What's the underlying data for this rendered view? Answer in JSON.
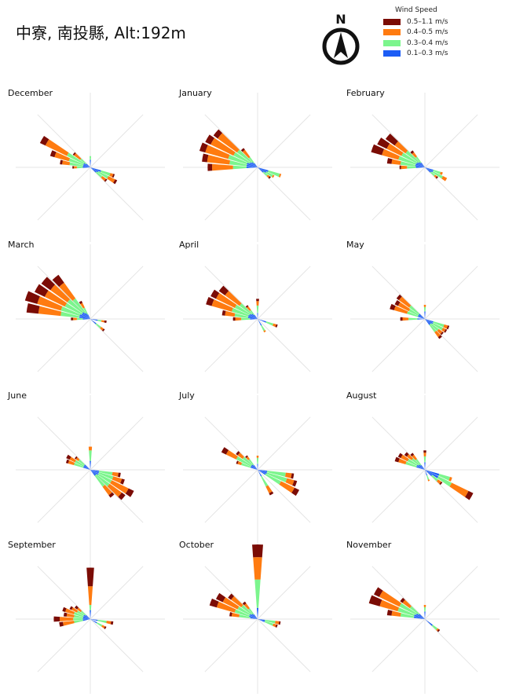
{
  "title": "中寮, 南投縣, Alt:192m",
  "compass_letter": "N",
  "legend": {
    "title": "Wind Speed",
    "items": [
      {
        "label": "0.5–1.1 m/s",
        "color": "#7b0c05"
      },
      {
        "label": "0.4–0.5 m/s",
        "color": "#ff7b10"
      },
      {
        "label": "0.3–0.4 m/s",
        "color": "#7cf58d"
      },
      {
        "label": "0.1–0.3 m/s",
        "color": "#1c5df5"
      }
    ]
  },
  "chart_data": {
    "type": "windrose",
    "direction_step_deg": 10,
    "bins": [
      "0.1–0.3 m/s",
      "0.3–0.4 m/s",
      "0.4–0.5 m/s",
      "0.5–1.1 m/s"
    ],
    "colors": [
      "#1c5df5",
      "#7cf58d",
      "#ff7b10",
      "#7b0c05"
    ],
    "rmax": 10,
    "months": [
      {
        "name": "December",
        "petals": [
          {
            "dir": 0,
            "v": [
              1.0,
              0.5,
              0,
              0
            ]
          },
          {
            "dir": 110,
            "v": [
              1.5,
              1.3,
              0.4,
              0.2
            ]
          },
          {
            "dir": 120,
            "v": [
              1.2,
              1.5,
              1.0,
              0.3
            ]
          },
          {
            "dir": 130,
            "v": [
              1.0,
              1.0,
              0.6,
              0.2
            ]
          },
          {
            "dir": 270,
            "v": [
              1.0,
              0.8,
              0.4,
              0.2
            ]
          },
          {
            "dir": 280,
            "v": [
              1.0,
              1.8,
              1.0,
              0.3
            ]
          },
          {
            "dir": 290,
            "v": [
              1.0,
              2.0,
              2.0,
              0.6
            ]
          },
          {
            "dir": 300,
            "v": [
              1.0,
              2.5,
              3.2,
              0.8
            ]
          },
          {
            "dir": 310,
            "v": [
              0.7,
              1.0,
              1.0,
              0.2
            ]
          }
        ]
      },
      {
        "name": "January",
        "petals": [
          {
            "dir": 110,
            "v": [
              1.5,
              1.6,
              0.2,
              0
            ]
          },
          {
            "dir": 120,
            "v": [
              1.3,
              1.0,
              0.2,
              0
            ]
          },
          {
            "dir": 130,
            "v": [
              1.0,
              0.7,
              0.3,
              0.2
            ]
          },
          {
            "dir": 270,
            "v": [
              1.5,
              1.8,
              2.8,
              0.6
            ]
          },
          {
            "dir": 280,
            "v": [
              1.5,
              2.3,
              3.0,
              0.7
            ]
          },
          {
            "dir": 290,
            "v": [
              1.5,
              2.6,
              3.2,
              0.8
            ]
          },
          {
            "dir": 300,
            "v": [
              1.2,
              2.4,
              3.4,
              0.8
            ]
          },
          {
            "dir": 310,
            "v": [
              1.0,
              2.4,
              3.2,
              0.7
            ]
          },
          {
            "dir": 320,
            "v": [
              0.7,
              1.0,
              1.2,
              0.3
            ]
          }
        ]
      },
      {
        "name": "February",
        "petals": [
          {
            "dir": 110,
            "v": [
              1.2,
              1.0,
              0.3,
              0
            ]
          },
          {
            "dir": 120,
            "v": [
              1.2,
              1.5,
              0.6,
              0
            ]
          },
          {
            "dir": 130,
            "v": [
              1.0,
              0.7,
              0.3,
              0.2
            ]
          },
          {
            "dir": 270,
            "v": [
              1.2,
              1.2,
              0.8,
              0.2
            ]
          },
          {
            "dir": 280,
            "v": [
              1.3,
              2.0,
              1.2,
              0.6
            ]
          },
          {
            "dir": 290,
            "v": [
              1.3,
              2.4,
              2.3,
              1.5
            ]
          },
          {
            "dir": 300,
            "v": [
              1.2,
              2.3,
              2.2,
              1.4
            ]
          },
          {
            "dir": 310,
            "v": [
              1.0,
              2.2,
              1.8,
              1.5
            ]
          },
          {
            "dir": 320,
            "v": [
              0.8,
              1.0,
              0.7,
              0.3
            ]
          }
        ]
      },
      {
        "name": "March",
        "petals": [
          {
            "dir": 100,
            "v": [
              1.0,
              0.5,
              0.4,
              0.3
            ]
          },
          {
            "dir": 130,
            "v": [
              1.0,
              0.8,
              0.4,
              0.2
            ]
          },
          {
            "dir": 270,
            "v": [
              1.0,
              0.8,
              0.5,
              0.3
            ]
          },
          {
            "dir": 280,
            "v": [
              1.5,
              2.5,
              3.0,
              1.6
            ]
          },
          {
            "dir": 290,
            "v": [
              1.5,
              2.6,
              3.3,
              1.7
            ]
          },
          {
            "dir": 300,
            "v": [
              1.3,
              2.5,
              3.0,
              1.5
            ]
          },
          {
            "dir": 310,
            "v": [
              1.3,
              2.5,
              2.8,
              1.5
            ]
          },
          {
            "dir": 320,
            "v": [
              1.0,
              2.4,
              2.6,
              1.3
            ]
          },
          {
            "dir": 330,
            "v": [
              0.7,
              1.0,
              0.7,
              0.3
            ]
          }
        ]
      },
      {
        "name": "April",
        "petals": [
          {
            "dir": 0,
            "v": [
              0.8,
              1.0,
              0.6,
              0.3
            ]
          },
          {
            "dir": 110,
            "v": [
              1.2,
              1.0,
              0.4,
              0.2
            ]
          },
          {
            "dir": 150,
            "v": [
              1.0,
              0.8,
              0.2,
              0
            ]
          },
          {
            "dir": 270,
            "v": [
              1.0,
              1.2,
              0.8,
              0.3
            ]
          },
          {
            "dir": 280,
            "v": [
              1.3,
              1.8,
              1.3,
              0.4
            ]
          },
          {
            "dir": 290,
            "v": [
              1.3,
              2.3,
              2.8,
              0.8
            ]
          },
          {
            "dir": 300,
            "v": [
              1.2,
              2.2,
              2.8,
              0.8
            ]
          },
          {
            "dir": 310,
            "v": [
              1.0,
              2.0,
              2.4,
              1.0
            ]
          },
          {
            "dir": 320,
            "v": [
              0.7,
              0.8,
              0.6,
              0.2
            ]
          }
        ]
      },
      {
        "name": "May",
        "petals": [
          {
            "dir": 0,
            "v": [
              1.0,
              0.6,
              0.3,
              0
            ]
          },
          {
            "dir": 110,
            "v": [
              1.2,
              1.5,
              0.5,
              0.2
            ]
          },
          {
            "dir": 120,
            "v": [
              1.2,
              1.5,
              0.4,
              0.2
            ]
          },
          {
            "dir": 130,
            "v": [
              1.0,
              1.3,
              0.6,
              0.2
            ]
          },
          {
            "dir": 140,
            "v": [
              1.0,
              1.2,
              0.8,
              0.3
            ]
          },
          {
            "dir": 270,
            "v": [
              1.0,
              1.2,
              0.8,
              0.3
            ]
          },
          {
            "dir": 290,
            "v": [
              1.0,
              1.5,
              1.8,
              0.6
            ]
          },
          {
            "dir": 300,
            "v": [
              1.0,
              1.4,
              1.6,
              0.5
            ]
          },
          {
            "dir": 310,
            "v": [
              1.0,
              1.6,
              1.7,
              0.4
            ]
          }
        ]
      },
      {
        "name": "June",
        "petals": [
          {
            "dir": 0,
            "v": [
              1.2,
              1.4,
              0.5,
              0
            ]
          },
          {
            "dir": 100,
            "v": [
              1.2,
              1.8,
              0.8,
              0.3
            ]
          },
          {
            "dir": 110,
            "v": [
              1.2,
              2.0,
              1.2,
              0.4
            ]
          },
          {
            "dir": 120,
            "v": [
              1.2,
              2.0,
              2.5,
              0.8
            ]
          },
          {
            "dir": 130,
            "v": [
              1.0,
              2.2,
              2.0,
              0.6
            ]
          },
          {
            "dir": 140,
            "v": [
              1.0,
              1.8,
              1.4,
              0.4
            ]
          },
          {
            "dir": 290,
            "v": [
              1.0,
              1.3,
              0.8,
              0.3
            ]
          },
          {
            "dir": 300,
            "v": [
              1.0,
              1.3,
              0.8,
              0.5
            ]
          },
          {
            "dir": 310,
            "v": [
              1.0,
              1.0,
              0.4,
              0.2
            ]
          }
        ]
      },
      {
        "name": "July",
        "petals": [
          {
            "dir": 0,
            "v": [
              0.8,
              0.8,
              0.3,
              0
            ]
          },
          {
            "dir": 100,
            "v": [
              1.3,
              2.5,
              0.8,
              0.3
            ]
          },
          {
            "dir": 110,
            "v": [
              1.3,
              2.8,
              1.0,
              0.4
            ]
          },
          {
            "dir": 120,
            "v": [
              1.2,
              2.3,
              2.0,
              0.7
            ]
          },
          {
            "dir": 150,
            "v": [
              1.0,
              1.5,
              1.0,
              0.3
            ]
          },
          {
            "dir": 290,
            "v": [
              1.0,
              1.3,
              0.5,
              0.2
            ]
          },
          {
            "dir": 300,
            "v": [
              1.0,
              2.2,
              1.5,
              0.7
            ]
          },
          {
            "dir": 310,
            "v": [
              1.0,
              1.5,
              0.8,
              0.3
            ]
          },
          {
            "dir": 320,
            "v": [
              0.8,
              1.0,
              0.4,
              0.2
            ]
          }
        ]
      },
      {
        "name": "August",
        "petals": [
          {
            "dir": 0,
            "v": [
              1.0,
              0.8,
              0.5,
              0.3
            ]
          },
          {
            "dir": 110,
            "v": [
              2.0,
              1.5,
              0.3,
              0
            ]
          },
          {
            "dir": 120,
            "v": [
              2.0,
              2.0,
              2.5,
              0.7
            ]
          },
          {
            "dir": 130,
            "v": [
              1.2,
              1.0,
              0.5,
              0.2
            ]
          },
          {
            "dir": 160,
            "v": [
              0.8,
              0.6,
              0.2,
              0
            ]
          },
          {
            "dir": 290,
            "v": [
              1.2,
              1.5,
              1.0,
              0.5
            ]
          },
          {
            "dir": 300,
            "v": [
              1.2,
              1.4,
              1.0,
              0.4
            ]
          },
          {
            "dir": 310,
            "v": [
              1.0,
              1.2,
              0.8,
              0.4
            ]
          },
          {
            "dir": 320,
            "v": [
              0.8,
              1.0,
              0.7,
              0.3
            ]
          }
        ]
      },
      {
        "name": "September",
        "petals": [
          {
            "dir": 0,
            "v": [
              1.2,
              0.7,
              2.5,
              2.5
            ]
          },
          {
            "dir": 100,
            "v": [
              1.0,
              1.2,
              0.6,
              0.3
            ]
          },
          {
            "dir": 120,
            "v": [
              1.0,
              0.8,
              0.4,
              0.2
            ]
          },
          {
            "dir": 260,
            "v": [
              1.0,
              1.2,
              1.5,
              0.5
            ]
          },
          {
            "dir": 270,
            "v": [
              1.0,
              1.3,
              1.8,
              0.8
            ]
          },
          {
            "dir": 280,
            "v": [
              1.0,
              1.2,
              1.0,
              0.4
            ]
          },
          {
            "dir": 290,
            "v": [
              1.0,
              1.3,
              1.2,
              0.4
            ]
          },
          {
            "dir": 300,
            "v": [
              1.0,
              1.0,
              0.8,
              0.3
            ]
          },
          {
            "dir": 310,
            "v": [
              0.8,
              0.8,
              0.6,
              0.4
            ]
          }
        ]
      },
      {
        "name": "October",
        "petals": [
          {
            "dir": 0,
            "v": [
              1.5,
              3.8,
              3.0,
              1.7
            ]
          },
          {
            "dir": 100,
            "v": [
              1.0,
              1.4,
              0.5,
              0.2
            ]
          },
          {
            "dir": 110,
            "v": [
              1.0,
              1.2,
              0.4,
              0.2
            ]
          },
          {
            "dir": 280,
            "v": [
              1.0,
              1.5,
              1.0,
              0.3
            ]
          },
          {
            "dir": 290,
            "v": [
              1.2,
              2.0,
              2.5,
              1.0
            ]
          },
          {
            "dir": 300,
            "v": [
              1.2,
              1.8,
              2.2,
              1.0
            ]
          },
          {
            "dir": 310,
            "v": [
              1.0,
              1.7,
              1.7,
              0.5
            ]
          },
          {
            "dir": 320,
            "v": [
              0.8,
              1.0,
              0.8,
              0.3
            ]
          }
        ]
      },
      {
        "name": "November",
        "petals": [
          {
            "dir": 0,
            "v": [
              1.0,
              0.6,
              0.3,
              0
            ]
          },
          {
            "dir": 130,
            "v": [
              1.3,
              0.8,
              0.2,
              0.2
            ]
          },
          {
            "dir": 280,
            "v": [
              1.5,
              1.8,
              1.2,
              0.6
            ]
          },
          {
            "dir": 290,
            "v": [
              1.5,
              2.3,
              2.5,
              1.5
            ]
          },
          {
            "dir": 300,
            "v": [
              1.3,
              2.5,
              3.0,
              0.8
            ]
          },
          {
            "dir": 310,
            "v": [
              1.0,
              1.5,
              1.2,
              0.4
            ]
          }
        ]
      }
    ]
  }
}
